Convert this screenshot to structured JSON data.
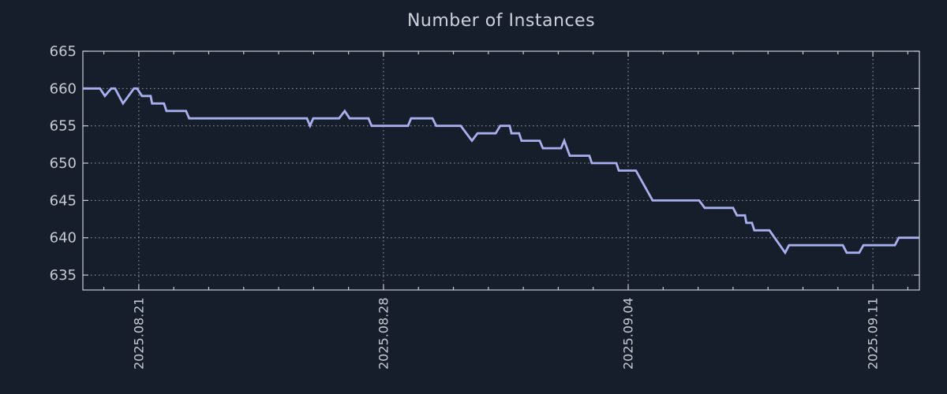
{
  "title": "Number of Instances",
  "colors": {
    "background": "#161e2b",
    "frame": "#c8ccd2",
    "grid": "#b6bac0",
    "line": "#a9aeec",
    "tick_text": "#c6cbd2",
    "title_text": "#cdd2da"
  },
  "chart_data": {
    "type": "line",
    "title": "Number of Instances",
    "xlabel": "",
    "ylabel": "",
    "legend": "none",
    "grid": "dotted",
    "x_unit": "days relative to 2025.08.21",
    "x_tick_days": [
      0,
      7,
      14,
      21
    ],
    "x_tick_labels": [
      "2025.08.21",
      "2025.08.28",
      "2025.09.04",
      "2025.09.11"
    ],
    "x_minor_tick_interval_days": 1,
    "xlim_days": [
      -1.6,
      22.33
    ],
    "y_ticks": [
      665,
      660,
      655,
      650,
      645,
      640,
      635
    ],
    "y_tick_labels": [
      "665",
      "660",
      "655",
      "650",
      "645",
      "640",
      "635"
    ],
    "ylim": [
      633,
      665
    ],
    "points": [
      [
        -1.6,
        660
      ],
      [
        -1.11,
        660
      ],
      [
        -0.97,
        659
      ],
      [
        -0.79,
        660
      ],
      [
        -0.68,
        660
      ],
      [
        -0.45,
        658
      ],
      [
        -0.14,
        660
      ],
      [
        -0.05,
        660
      ],
      [
        0.09,
        659
      ],
      [
        0.34,
        659
      ],
      [
        0.38,
        658
      ],
      [
        0.72,
        658
      ],
      [
        0.79,
        657
      ],
      [
        1.35,
        657
      ],
      [
        1.44,
        656
      ],
      [
        4.81,
        656
      ],
      [
        4.9,
        655
      ],
      [
        4.99,
        656
      ],
      [
        5.73,
        656
      ],
      [
        5.89,
        657
      ],
      [
        6.03,
        656
      ],
      [
        6.57,
        656
      ],
      [
        6.66,
        655
      ],
      [
        7.7,
        655
      ],
      [
        7.79,
        656
      ],
      [
        8.4,
        656
      ],
      [
        8.51,
        655
      ],
      [
        9.21,
        655
      ],
      [
        9.53,
        653
      ],
      [
        9.69,
        654
      ],
      [
        10.21,
        654
      ],
      [
        10.34,
        655
      ],
      [
        10.61,
        655
      ],
      [
        10.66,
        654
      ],
      [
        10.88,
        654
      ],
      [
        10.95,
        653
      ],
      [
        11.47,
        653
      ],
      [
        11.56,
        652
      ],
      [
        12.08,
        652
      ],
      [
        12.17,
        653
      ],
      [
        12.33,
        651
      ],
      [
        12.89,
        651
      ],
      [
        12.96,
        650
      ],
      [
        13.66,
        650
      ],
      [
        13.73,
        649
      ],
      [
        14.22,
        649
      ],
      [
        14.7,
        645
      ],
      [
        16.03,
        645
      ],
      [
        16.19,
        644
      ],
      [
        17.0,
        644
      ],
      [
        17.11,
        643
      ],
      [
        17.34,
        643
      ],
      [
        17.38,
        642
      ],
      [
        17.54,
        642
      ],
      [
        17.61,
        641
      ],
      [
        18.04,
        641
      ],
      [
        18.49,
        638
      ],
      [
        18.6,
        639
      ],
      [
        20.14,
        639
      ],
      [
        20.25,
        638
      ],
      [
        20.61,
        638
      ],
      [
        20.73,
        639
      ],
      [
        21.63,
        639
      ],
      [
        21.74,
        640
      ],
      [
        22.33,
        640
      ]
    ]
  }
}
